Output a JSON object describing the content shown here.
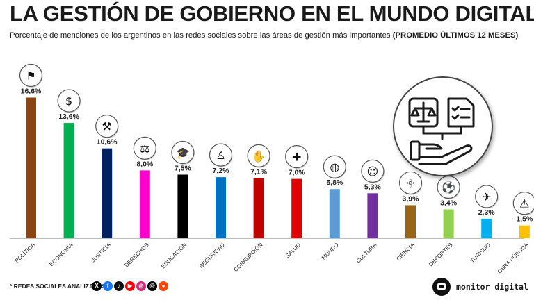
{
  "header": {
    "title": "LA GESTIÓN DE GOBIERNO EN EL MUNDO DIGITAL",
    "subtitle": "Porcentaje de menciones de los argentinos en las redes sociales sobre las áreas de gestión más importantes",
    "subtitle_bold": "(PROMEDIO ÚLTIMOS 12 MESES)"
  },
  "chart_data": {
    "type": "bar",
    "categories": [
      "POLÍTICA",
      "ECONOMÍA",
      "JUSTICIA",
      "DERECHOS",
      "EDUCACIÓN",
      "SEGURIDAD",
      "CORRUPCIÓN",
      "SALUD",
      "MUNDO",
      "CULTURA",
      "CIENCIA",
      "DEPORTES",
      "TURISMO",
      "OBRA PÚBLICA"
    ],
    "values": [
      16.6,
      13.6,
      10.6,
      8.0,
      7.5,
      7.2,
      7.1,
      7.0,
      5.8,
      5.3,
      3.9,
      3.4,
      2.3,
      1.5
    ],
    "value_labels": [
      "16,6%",
      "13,6%",
      "10,6%",
      "8,0%",
      "7,5%",
      "7,2%",
      "7,1%",
      "7,0%",
      "5,8%",
      "5,3%",
      "3,9%",
      "3,4%",
      "2,3%",
      "1,5%"
    ],
    "colors": [
      "#8B4513",
      "#00B050",
      "#002060",
      "#FF00CC",
      "#000000",
      "#0070C0",
      "#C00000",
      "#E00000",
      "#5B9BD5",
      "#7030A0",
      "#996515",
      "#92D050",
      "#00B0F0",
      "#FFC000"
    ],
    "icons": [
      "podium-icon",
      "dollar-icon",
      "gavel-icon",
      "scales-seal-icon",
      "graduation-cap-icon",
      "police-officer-icon",
      "handshake-icon",
      "health-cross-icon",
      "globe-icon",
      "theater-masks-icon",
      "atom-icon",
      "sports-balls-icon",
      "travel-icon",
      "construction-icon"
    ],
    "ylim": [
      0,
      17
    ],
    "grid": false,
    "legend": "none"
  },
  "footer": {
    "note": "* REDES SOCIALES ANALIZADAS",
    "networks": [
      {
        "name": "x-icon",
        "glyph": "X",
        "color": "#000000"
      },
      {
        "name": "facebook-icon",
        "glyph": "f",
        "color": "#1877F2"
      },
      {
        "name": "tiktok-icon",
        "glyph": "♪",
        "color": "#111111"
      },
      {
        "name": "youtube-icon",
        "glyph": "▶",
        "color": "#FF0000"
      },
      {
        "name": "instagram-icon",
        "glyph": "◎",
        "color": "#D62976"
      },
      {
        "name": "threads-icon",
        "glyph": "@",
        "color": "#000000"
      },
      {
        "name": "reddit-icon",
        "glyph": "●",
        "color": "#FF4500"
      }
    ],
    "brand": "monitor digital"
  }
}
